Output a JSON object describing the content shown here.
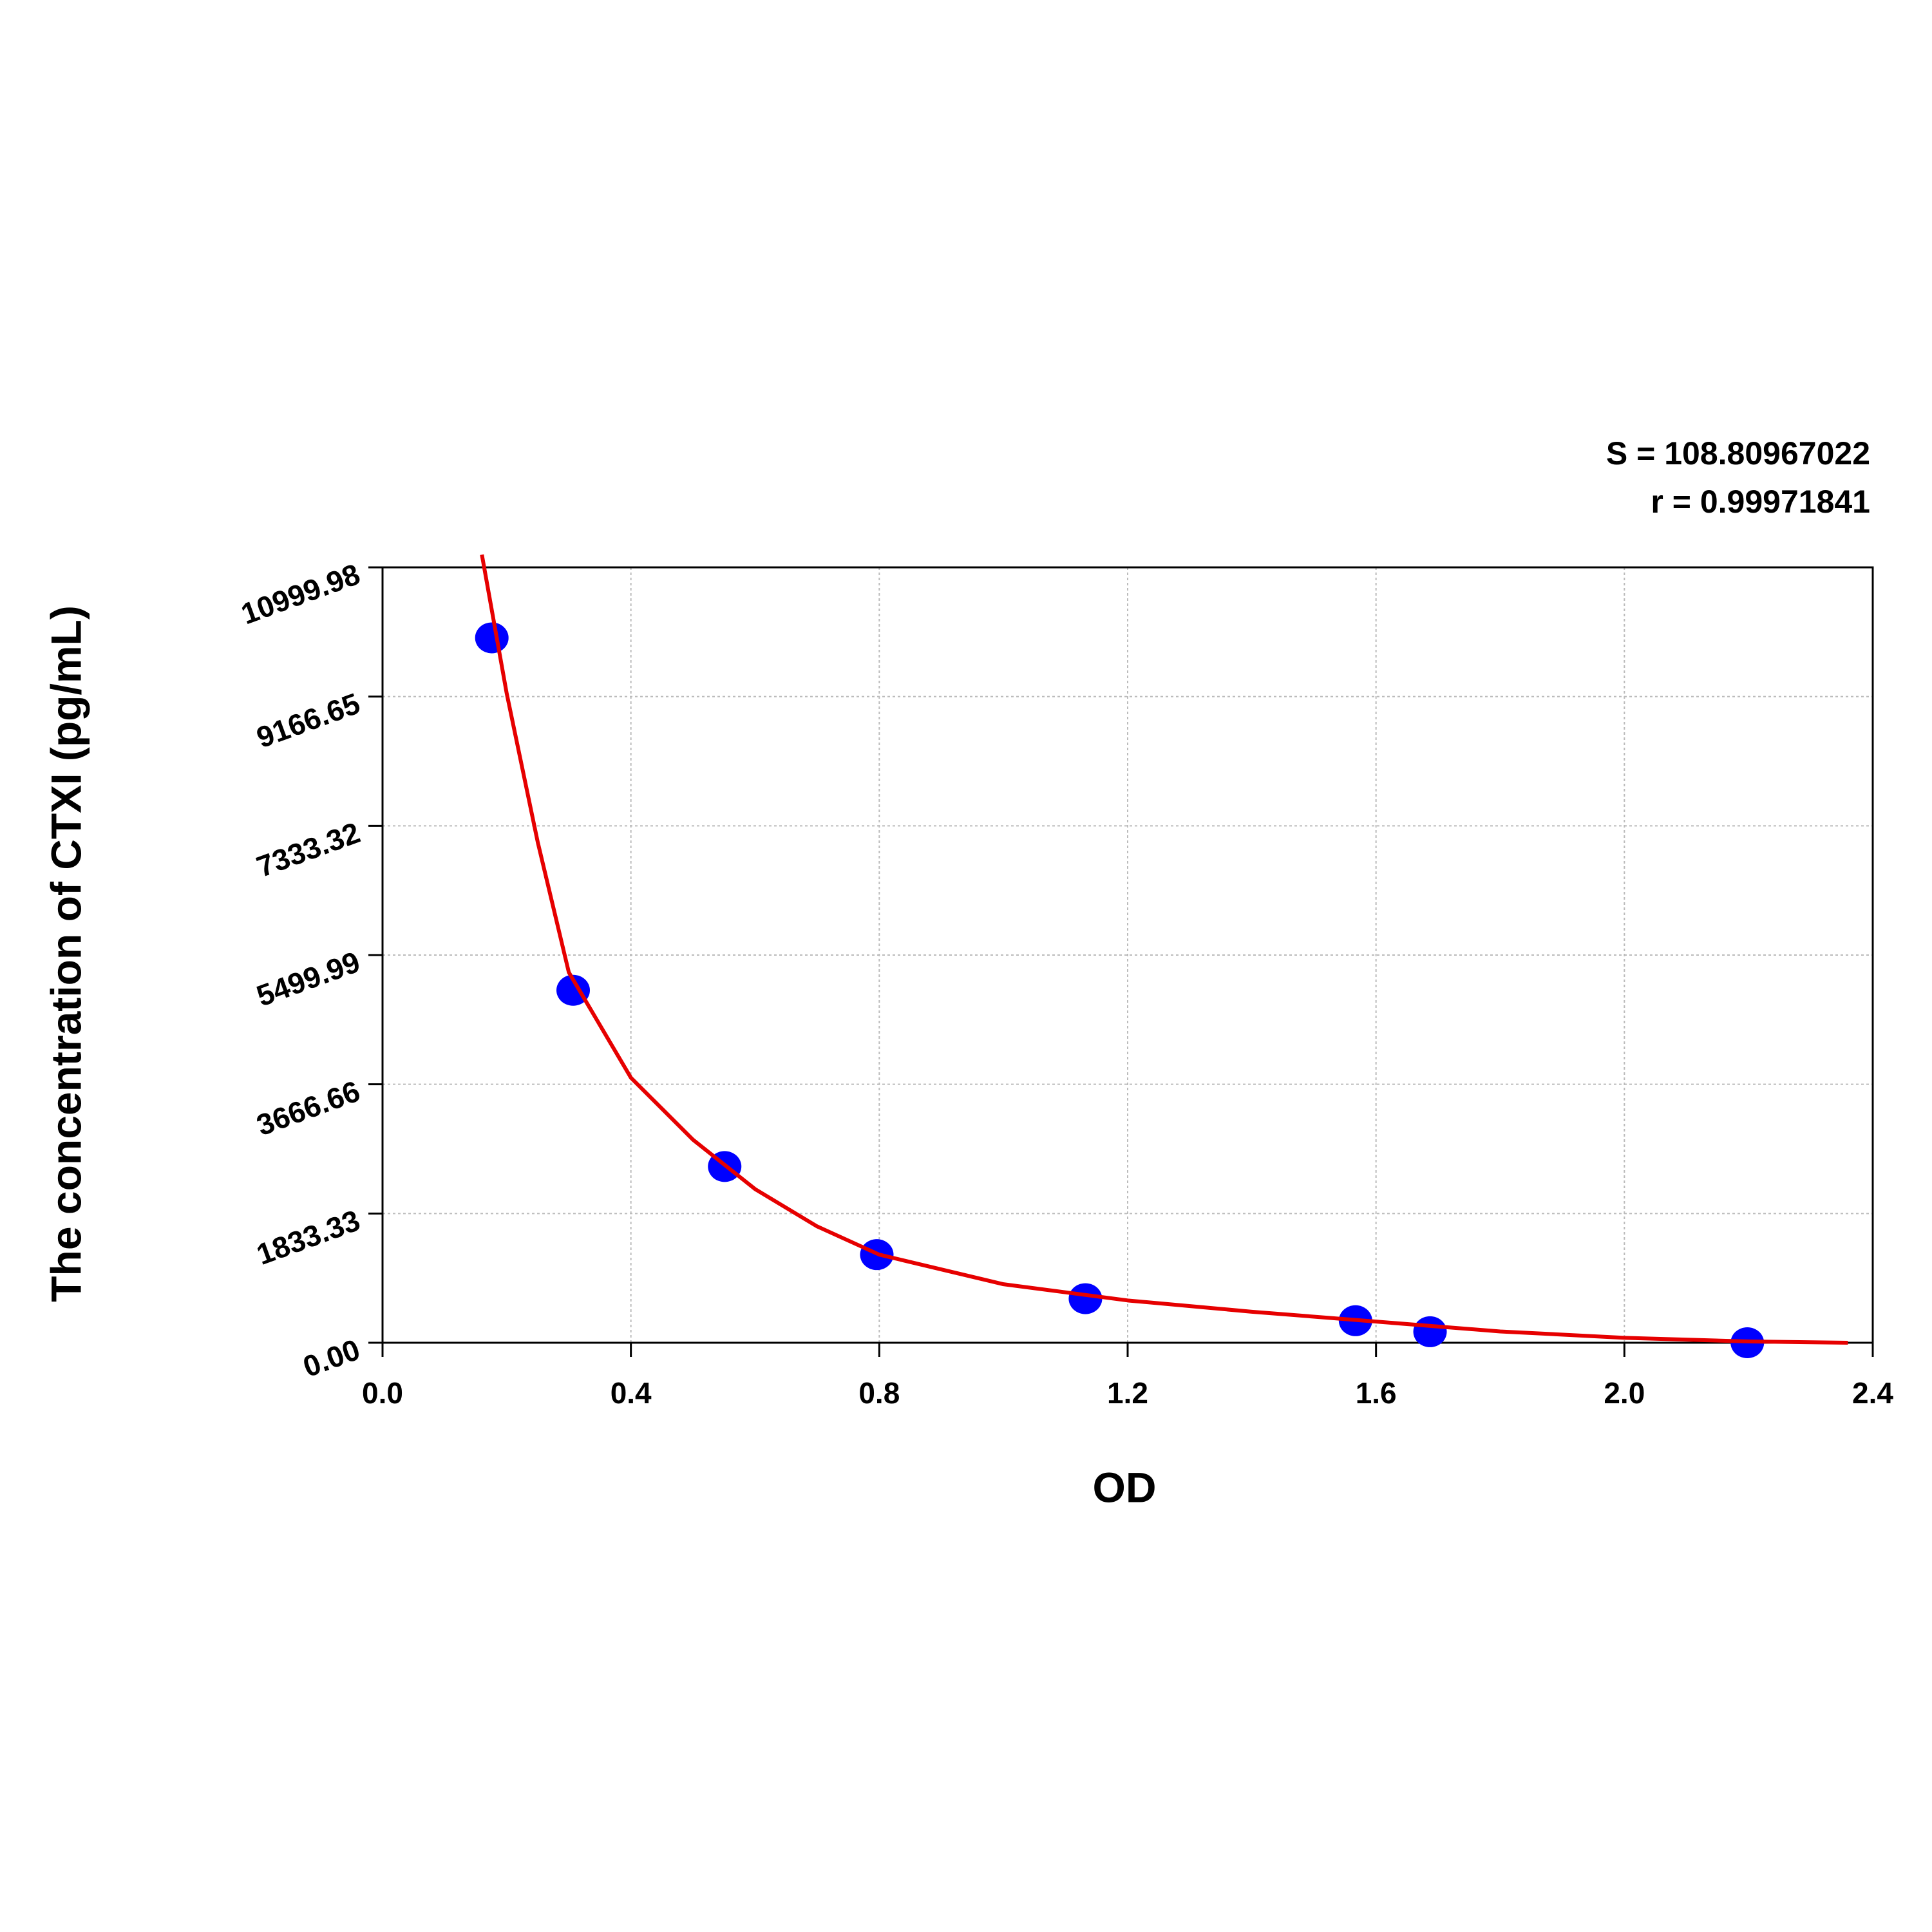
{
  "chart_data": {
    "type": "scatter",
    "x_label": "OD",
    "y_label": "The concentration of CTXI (pg/mL)",
    "annotations": [
      "S = 108.80967022",
      "r = 0.99971841"
    ],
    "xlim": [
      0,
      2.4
    ],
    "xticks": [
      {
        "value": 0,
        "label": "0.0"
      },
      0.4,
      0.8,
      1.2,
      1.6,
      {
        "value": 2,
        "label": "2.0"
      },
      2.4
    ],
    "ylim": [
      0,
      10999.98
    ],
    "yticks": [
      {
        "value": 0,
        "label": "0.00"
      },
      1833.33,
      3666.66,
      5499.99,
      7333.32,
      9166.65,
      10999.98
    ],
    "grid": true,
    "series": [
      {
        "color": "#0000ff",
        "marker": "dot",
        "x": [
          0.176,
          0.307,
          0.551,
          0.796,
          1.132,
          1.567,
          1.687,
          2.198
        ],
        "values": [
          10000,
          5000,
          2500,
          1250,
          625,
          312.5,
          156,
          0
        ]
      },
      {
        "color": "#e60000",
        "marker": "line",
        "x": [
          0.16,
          0.2,
          0.25,
          0.3,
          0.4,
          0.5,
          0.6,
          0.7,
          0.8,
          1.0,
          1.2,
          1.4,
          1.6,
          1.8,
          2.0,
          2.2,
          2.36
        ],
        "values": [
          11180,
          9210,
          7100,
          5255,
          3760,
          2880,
          2180,
          1650,
          1250,
          830,
          600,
          440,
          300,
          160,
          70,
          18,
          0
        ]
      }
    ]
  }
}
